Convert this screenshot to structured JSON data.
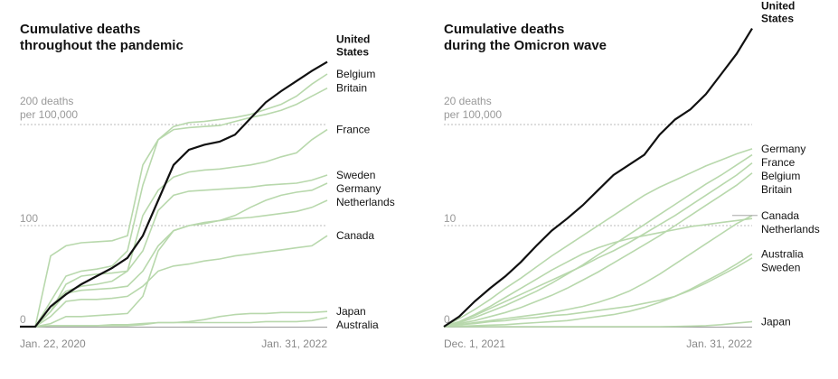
{
  "chart_data": [
    {
      "type": "line",
      "title": [
        "Cumulative deaths",
        "throughout the pandemic"
      ],
      "y_unit_label": "per 100,000",
      "y_unit_suffix": "deaths",
      "ylim": [
        0,
        240
      ],
      "yticks": [
        0,
        100,
        200
      ],
      "x_start_label": "Jan. 22, 2020",
      "x_end_label": "Jan. 31, 2022",
      "xlabel": "",
      "ylabel": "Cumulative deaths per 100,000",
      "x": [
        0,
        0.05,
        0.1,
        0.15,
        0.2,
        0.25,
        0.3,
        0.35,
        0.4,
        0.45,
        0.5,
        0.55,
        0.6,
        0.65,
        0.7,
        0.75,
        0.8,
        0.85,
        0.9,
        0.95,
        1.0
      ],
      "highlight": "United States",
      "series": [
        {
          "name": "United States",
          "label_lines": [
            "United",
            "States"
          ],
          "values": [
            0,
            0,
            20,
            32,
            42,
            50,
            58,
            68,
            90,
            125,
            160,
            175,
            180,
            183,
            190,
            206,
            222,
            233,
            243,
            253,
            262
          ]
        },
        {
          "name": "Belgium",
          "label_lines": [
            "Belgium"
          ],
          "values": [
            0,
            0,
            70,
            80,
            83,
            84,
            85,
            90,
            160,
            185,
            198,
            202,
            203,
            205,
            207,
            210,
            215,
            220,
            228,
            240,
            250
          ]
        },
        {
          "name": "Britain",
          "label_lines": [
            "Britain"
          ],
          "values": [
            0,
            0,
            25,
            50,
            55,
            57,
            60,
            75,
            140,
            185,
            195,
            197,
            198,
            199,
            203,
            207,
            210,
            214,
            220,
            228,
            236
          ]
        },
        {
          "name": "France",
          "label_lines": [
            "France"
          ],
          "values": [
            0,
            0,
            20,
            35,
            40,
            42,
            45,
            55,
            110,
            135,
            148,
            153,
            155,
            156,
            158,
            160,
            163,
            168,
            172,
            185,
            195
          ]
        },
        {
          "name": "Sweden",
          "label_lines": [
            "Sweden"
          ],
          "values": [
            0,
            0,
            15,
            42,
            50,
            52,
            53,
            55,
            75,
            115,
            130,
            134,
            135,
            136,
            137,
            138,
            140,
            141,
            142,
            145,
            150
          ]
        },
        {
          "name": "Germany",
          "label_lines": [
            "Germany"
          ],
          "values": [
            0,
            0,
            3,
            10,
            10,
            11,
            12,
            13,
            30,
            75,
            95,
            100,
            102,
            105,
            110,
            118,
            125,
            130,
            133,
            135,
            142
          ]
        },
        {
          "name": "Netherlands",
          "label_lines": [
            "Netherlands"
          ],
          "values": [
            0,
            0,
            15,
            33,
            36,
            37,
            38,
            40,
            55,
            80,
            95,
            100,
            103,
            105,
            107,
            108,
            110,
            112,
            114,
            118,
            125
          ]
        },
        {
          "name": "Canada",
          "label_lines": [
            "Canada"
          ],
          "values": [
            0,
            0,
            10,
            25,
            27,
            27,
            28,
            30,
            40,
            55,
            60,
            62,
            65,
            67,
            70,
            72,
            74,
            76,
            78,
            80,
            90
          ]
        },
        {
          "name": "Japan",
          "label_lines": [
            "Japan"
          ],
          "values": [
            0,
            0,
            1,
            1,
            1,
            1,
            2,
            2,
            3,
            4,
            4,
            5,
            7,
            10,
            12,
            13,
            13,
            14,
            14,
            14,
            15
          ]
        },
        {
          "name": "Australia",
          "label_lines": [
            "Australia"
          ],
          "values": [
            0,
            0,
            1,
            1,
            1,
            1,
            1,
            1,
            2,
            4,
            4,
            4,
            4,
            4,
            4,
            4,
            5,
            5,
            5,
            6,
            9
          ]
        }
      ]
    },
    {
      "type": "line",
      "title": [
        "Cumulative deaths",
        "during the Omicron wave"
      ],
      "y_unit_label": "per 100,000",
      "y_unit_suffix": "deaths",
      "ylim": [
        0,
        24
      ],
      "yticks": [
        0,
        10,
        20
      ],
      "x_start_label": "Dec. 1, 2021",
      "x_end_label": "Jan. 31, 2022",
      "xlabel": "",
      "ylabel": "Cumulative deaths per 100,000",
      "x": [
        0,
        0.05,
        0.1,
        0.15,
        0.2,
        0.25,
        0.3,
        0.35,
        0.4,
        0.45,
        0.5,
        0.55,
        0.6,
        0.65,
        0.7,
        0.75,
        0.8,
        0.85,
        0.9,
        0.95,
        1.0
      ],
      "highlight": "United States",
      "series": [
        {
          "name": "United States",
          "label_lines": [
            "United",
            "States"
          ],
          "values": [
            0,
            1,
            2.5,
            3.8,
            5,
            6.4,
            8,
            9.5,
            10.7,
            12,
            13.5,
            15,
            16,
            17,
            19,
            20.5,
            21.5,
            23,
            25,
            27,
            29.5
          ]
        },
        {
          "name": "Germany",
          "label_lines": [
            "Germany"
          ],
          "values": [
            0,
            0.8,
            1.7,
            2.7,
            3.8,
            4.8,
            5.9,
            7,
            8,
            9,
            10,
            11,
            12,
            13,
            13.8,
            14.5,
            15.2,
            15.9,
            16.5,
            17.1,
            17.6
          ]
        },
        {
          "name": "France",
          "label_lines": [
            "France"
          ],
          "values": [
            0,
            0.4,
            0.9,
            1.5,
            2.1,
            2.8,
            3.5,
            4.3,
            5.2,
            6.1,
            7.1,
            8.1,
            9.1,
            10.1,
            11.1,
            12.1,
            13.1,
            14.1,
            15,
            16,
            17
          ]
        },
        {
          "name": "Belgium",
          "label_lines": [
            "Belgium"
          ],
          "values": [
            0,
            0.5,
            1.1,
            1.8,
            2.5,
            3.2,
            3.9,
            4.6,
            5.3,
            6,
            6.8,
            7.5,
            8.3,
            9.2,
            10.1,
            11,
            12,
            13,
            14,
            15,
            16.2
          ]
        },
        {
          "name": "Britain",
          "label_lines": [
            "Britain"
          ],
          "values": [
            0,
            0.3,
            0.6,
            1,
            1.4,
            1.9,
            2.5,
            3.1,
            3.8,
            4.6,
            5.4,
            6.3,
            7.2,
            8.1,
            9,
            10,
            11,
            12,
            13,
            14,
            15.2
          ]
        },
        {
          "name": "Netherlands",
          "label_lines": [
            "Netherlands"
          ],
          "values": [
            0,
            0.5,
            1.2,
            2,
            2.9,
            3.8,
            4.7,
            5.6,
            6.4,
            7.2,
            7.8,
            8.3,
            8.7,
            9,
            9.3,
            9.6,
            9.9,
            10.1,
            10.3,
            10.5,
            10.7
          ]
        },
        {
          "name": "Canada",
          "label_lines": [
            "Canada"
          ],
          "values": [
            0,
            0.2,
            0.4,
            0.6,
            0.8,
            1,
            1.2,
            1.4,
            1.7,
            2,
            2.4,
            2.9,
            3.5,
            4.3,
            5.2,
            6.2,
            7.2,
            8.2,
            9.2,
            10.2,
            11
          ]
        },
        {
          "name": "Australia",
          "label_lines": [
            "Australia"
          ],
          "values": [
            0,
            0.05,
            0.1,
            0.15,
            0.2,
            0.3,
            0.4,
            0.5,
            0.6,
            0.8,
            1,
            1.2,
            1.5,
            1.9,
            2.4,
            3,
            3.7,
            4.5,
            5.3,
            6.2,
            7.2
          ]
        },
        {
          "name": "Sweden",
          "label_lines": [
            "Sweden"
          ],
          "values": [
            0,
            0.2,
            0.3,
            0.5,
            0.6,
            0.8,
            0.9,
            1.1,
            1.2,
            1.4,
            1.6,
            1.8,
            2,
            2.3,
            2.6,
            3,
            3.6,
            4.3,
            5.1,
            5.9,
            6.8
          ]
        },
        {
          "name": "Japan",
          "label_lines": [
            "Japan"
          ],
          "values": [
            0,
            0,
            0,
            0,
            0,
            0,
            0,
            0,
            0,
            0,
            0,
            0,
            0,
            0,
            0,
            0.02,
            0.05,
            0.1,
            0.2,
            0.35,
            0.5
          ]
        }
      ]
    }
  ]
}
